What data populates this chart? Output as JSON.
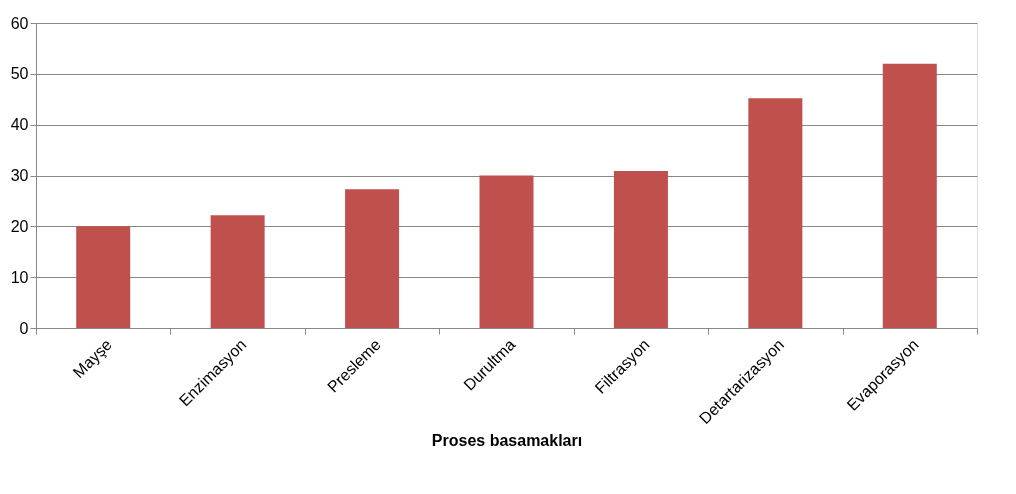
{
  "chart_data": {
    "type": "bar",
    "xlabel": "Proses basamakları",
    "categories": [
      "Mayşe",
      "Enzimasyon",
      "Presleme",
      "Durultma",
      "Filtrasyon",
      "Detartarizasyon",
      "Evaporasyon"
    ],
    "values": [
      20,
      22.2,
      27.3,
      30,
      30.9,
      45.2,
      52
    ],
    "color": "#c0504d",
    "ylim": [
      0,
      60
    ],
    "yticks": [
      0,
      10,
      20,
      30,
      40,
      50,
      60
    ],
    "grid": "y"
  }
}
